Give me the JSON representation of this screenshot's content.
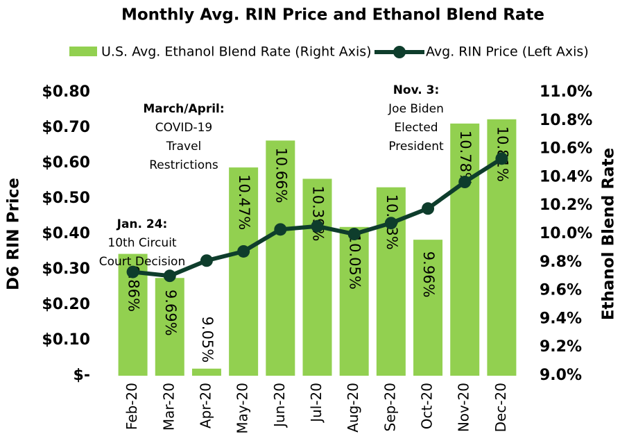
{
  "chart_data": {
    "type": "bar-line",
    "title": "Monthly Avg. RIN Price and Ethanol Blend Rate",
    "categories": [
      "Feb-20",
      "Mar-20",
      "Apr-20",
      "May-20",
      "Jun-20",
      "Jul-20",
      "Aug-20",
      "Sep-20",
      "Oct-20",
      "Nov-20",
      "Dec-20"
    ],
    "series": [
      {
        "name": "U.S. Avg. Ethanol Blend Rate (Right Axis)",
        "type": "bar",
        "axis": "y2",
        "color": "#92d050",
        "values": [
          9.86,
          9.69,
          9.05,
          10.47,
          10.66,
          10.39,
          10.05,
          10.33,
          9.96,
          10.78,
          10.81
        ],
        "value_labels": [
          "9.86%",
          "9.69%",
          "9.05%",
          "10.47%",
          "10.66%",
          "10.39%",
          "10.05%",
          "10.33%",
          "9.96%",
          "10.78%",
          "10.81%"
        ]
      },
      {
        "name": "Avg. RIN Price (Left Axis)",
        "type": "line",
        "axis": "y",
        "color": "#0e3d2c",
        "values": [
          0.293,
          0.282,
          0.325,
          0.351,
          0.413,
          0.422,
          0.4,
          0.431,
          0.472,
          0.547,
          0.613
        ]
      }
    ],
    "ylabel": "D6 RIN Price",
    "y2label": "Ethanol Blend Rate",
    "ylim": [
      0,
      0.8
    ],
    "yticks": [
      {
        "value": 0,
        "label": "$-"
      },
      {
        "value": 0.1,
        "label": "$0.10"
      },
      {
        "value": 0.2,
        "label": "$0.20"
      },
      {
        "value": 0.3,
        "label": "$0.30"
      },
      {
        "value": 0.4,
        "label": "$0.40"
      },
      {
        "value": 0.5,
        "label": "$0.50"
      },
      {
        "value": 0.6,
        "label": "$0.60"
      },
      {
        "value": 0.7,
        "label": "$0.70"
      },
      {
        "value": 0.8,
        "label": "$0.80"
      }
    ],
    "y2lim": [
      9.0,
      11.0
    ],
    "y2ticks": [
      {
        "value": 9.0,
        "label": "9.0%"
      },
      {
        "value": 9.2,
        "label": "9.2%"
      },
      {
        "value": 9.4,
        "label": "9.4%"
      },
      {
        "value": 9.6,
        "label": "9.6%"
      },
      {
        "value": 9.8,
        "label": "9.8%"
      },
      {
        "value": 10.0,
        "label": "10.0%"
      },
      {
        "value": 10.2,
        "label": "10.2%"
      },
      {
        "value": 10.4,
        "label": "10.4%"
      },
      {
        "value": 10.6,
        "label": "10.6%"
      },
      {
        "value": 10.8,
        "label": "10.8%"
      },
      {
        "value": 11.0,
        "label": "11.0%"
      }
    ],
    "annotations": [
      {
        "title": "Jan. 24:",
        "lines": [
          "10th Circuit",
          "Court Decision"
        ]
      },
      {
        "title": "March/April:",
        "lines": [
          "COVID-19",
          "Travel",
          "Restrictions"
        ]
      },
      {
        "title": "Nov. 3:",
        "lines": [
          "Joe Biden",
          "Elected",
          "President"
        ]
      }
    ]
  }
}
